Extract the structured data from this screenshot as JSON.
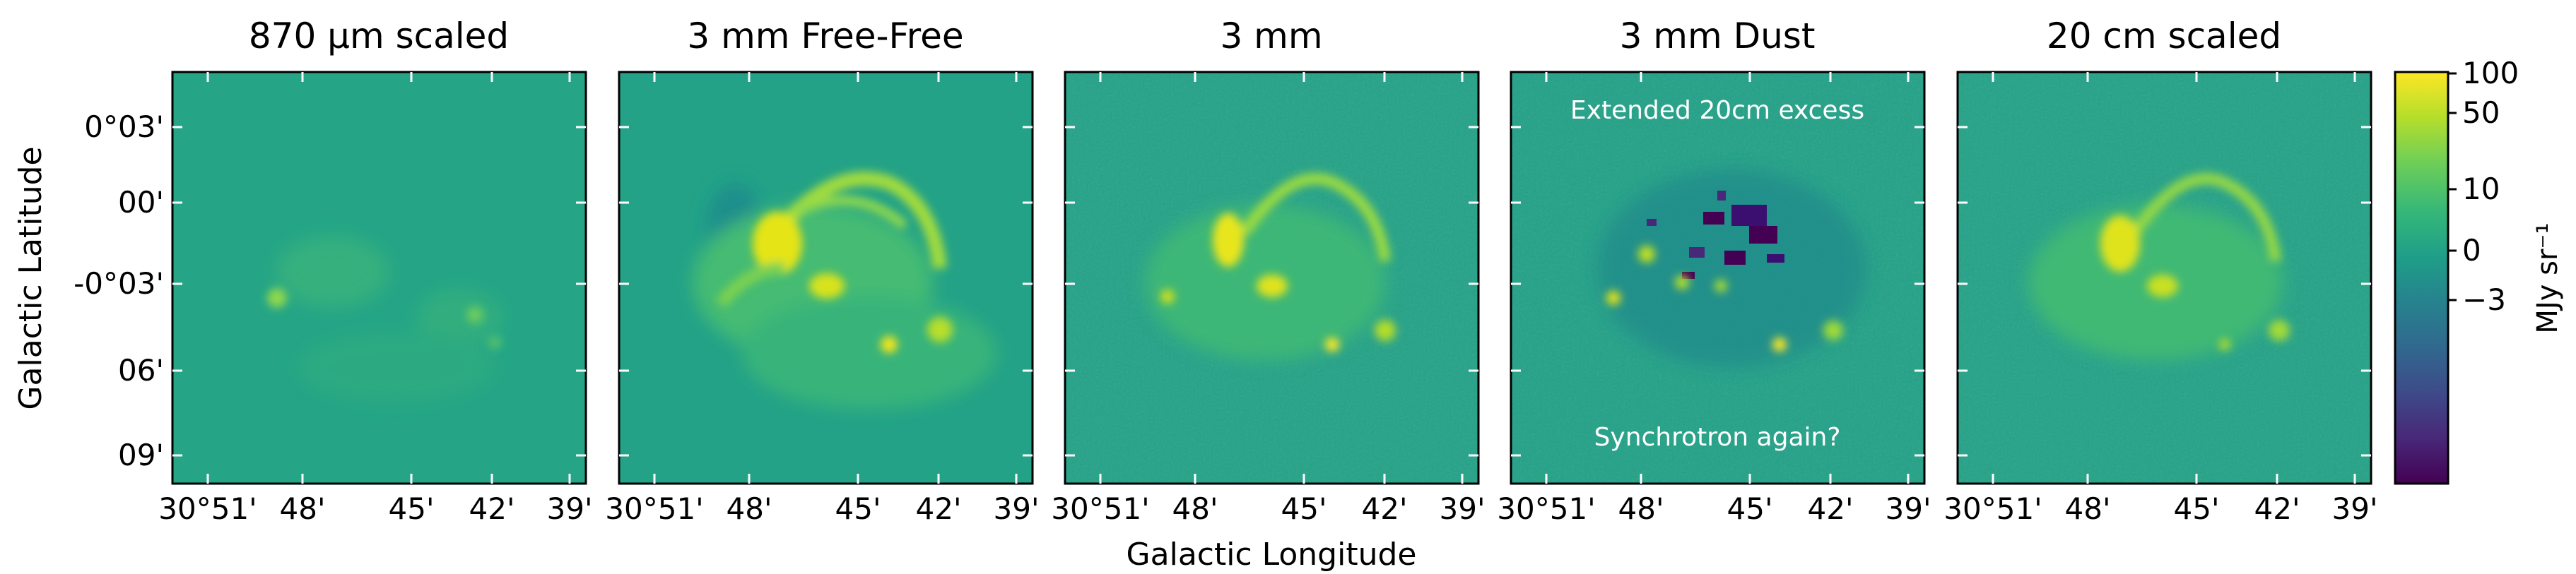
{
  "figure": {
    "xlabel": "Galactic Longitude",
    "ylabel": "Galactic Latitude"
  },
  "chart_data": {
    "type": "heatmap",
    "colormap": "viridis",
    "x_ticks": [
      "30°51'",
      "48'",
      "45'",
      "42'",
      "39'"
    ],
    "y_ticks": [
      "0°03'",
      "00'",
      "-0°03'",
      "06'",
      "09'"
    ],
    "panels": [
      {
        "title": "870 μm scaled",
        "annotations": []
      },
      {
        "title": "3 mm Free-Free",
        "annotations": []
      },
      {
        "title": "3 mm",
        "annotations": []
      },
      {
        "title": "3 mm Dust",
        "annotations": [
          "Extended 20cm excess",
          "Synchrotron again?"
        ]
      },
      {
        "title": "20 cm scaled",
        "annotations": []
      }
    ],
    "colorbar": {
      "label": "MJy sr⁻¹",
      "ticks": [
        "100",
        "50",
        "10",
        "0",
        "−3"
      ],
      "colors": [
        "#440154",
        "#482878",
        "#3e4a89",
        "#31688e",
        "#26828e",
        "#1f9e89",
        "#35b779",
        "#6ece58",
        "#b5de2b",
        "#fde725"
      ]
    }
  }
}
